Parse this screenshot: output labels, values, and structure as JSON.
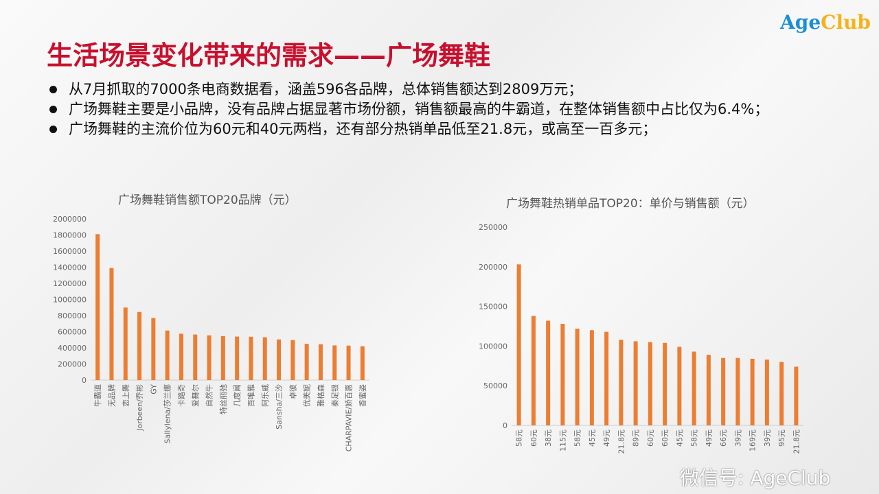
{
  "logo": {
    "age": "Age",
    "club": "Club"
  },
  "title": "生活场景变化带来的需求——广场舞鞋",
  "bullets": [
    "从7月抓取的7000条电商数据看，涵盖596各品牌，总体销售额达到2809万元；",
    "广场舞鞋主要是小品牌，没有品牌占据显著市场份额，销售额最高的牛霸道，在整体销售额中占比仅为6.4%；",
    "广场舞鞋的主流价位为60元和40元两档，还有部分热销单品低至21.8元，或高至一百多元；"
  ],
  "watermark": "微信号: AgeClub",
  "chart_data": [
    {
      "type": "bar",
      "title": "广场舞鞋销售额TOP20品牌（元）",
      "ylim": [
        0,
        2000000
      ],
      "yticks": [
        0,
        200000,
        400000,
        600000,
        800000,
        1000000,
        1200000,
        1400000,
        1600000,
        1800000,
        2000000
      ],
      "color": "#ed7d31",
      "categories": [
        "牛霸道",
        "无品牌",
        "恋上舞",
        "Jorbeen/乔彬",
        "GY",
        "Sallylena/莎兰娜",
        "卡路奇",
        "爱舞尔",
        "自然牛",
        "特丝丽弛",
        "几度闻",
        "百唯雅",
        "阿乐威",
        "Sansha/三沙",
        "卓彼",
        "优美妮",
        "雅格森",
        "秦足银",
        "CHARPAVIE/娇百惠",
        "香蜜姿"
      ],
      "values": [
        1810000,
        1390000,
        900000,
        845000,
        770000,
        615000,
        575000,
        565000,
        555000,
        545000,
        540000,
        538000,
        532000,
        505000,
        497000,
        450000,
        445000,
        430000,
        428000,
        420000
      ]
    },
    {
      "type": "bar",
      "title": "广场舞鞋热销单品TOP20：单价与销售额（元）",
      "ylim": [
        0,
        250000
      ],
      "yticks": [
        0,
        50000,
        100000,
        150000,
        200000,
        250000
      ],
      "color": "#ed7d31",
      "categories": [
        "58元",
        "60元",
        "38元",
        "115元",
        "58元",
        "45元",
        "49元",
        "21.8元",
        "89元",
        "60元",
        "60元",
        "45元",
        "58元",
        "49元",
        "66元",
        "39元",
        "169元",
        "39元",
        "95元",
        "21.8元"
      ],
      "values": [
        203000,
        138000,
        132000,
        128000,
        122000,
        120000,
        118000,
        108000,
        106000,
        105000,
        104000,
        99000,
        93000,
        89000,
        85000,
        85000,
        84000,
        83000,
        80000,
        74000
      ]
    }
  ]
}
